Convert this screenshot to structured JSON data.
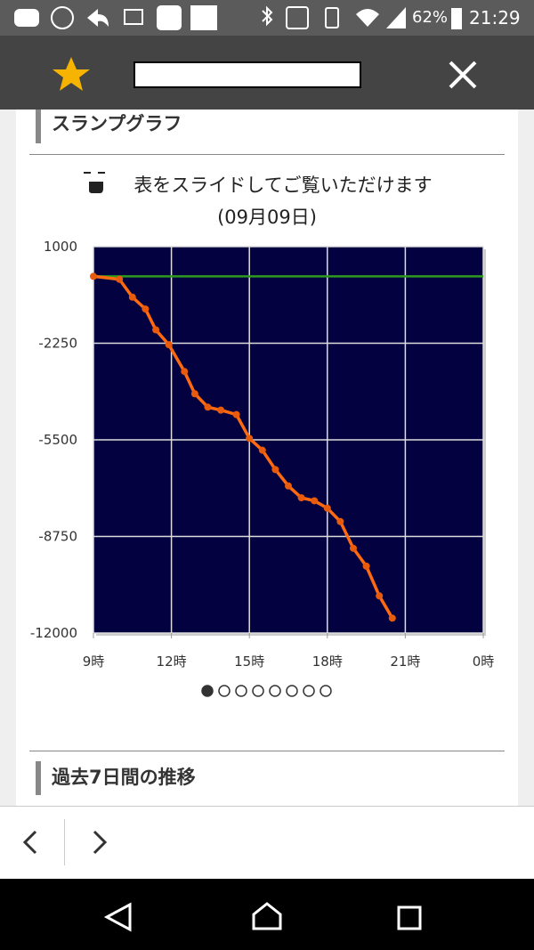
{
  "status_bar": {
    "battery": "62%",
    "time": "21:29"
  },
  "section_title": "スランプグラフ",
  "slide_notice": "表をスライドしてご覧いただけます",
  "date": "(09月09日)",
  "chart_data": {
    "type": "line",
    "xlim": [
      9,
      24
    ],
    "ylim": [
      -12000,
      1000
    ],
    "xticks": [
      {
        "value": 9,
        "label": "9時"
      },
      {
        "value": 12,
        "label": "12時"
      },
      {
        "value": 15,
        "label": "15時"
      },
      {
        "value": 18,
        "label": "18時"
      },
      {
        "value": 21,
        "label": "21時"
      },
      {
        "value": 24,
        "label": "0時"
      }
    ],
    "yticks": [
      1000,
      -2250,
      -5500,
      -8750,
      -12000
    ],
    "grid": true,
    "background": "#03013f",
    "series": [
      {
        "color": "#2e9a1e",
        "x": [
          9,
          24
        ],
        "values": [
          0,
          0
        ]
      },
      {
        "color": "#ff6a10",
        "x": [
          9,
          10,
          10.5,
          11,
          11.4,
          11.9,
          12.5,
          12.9,
          13.4,
          13.9,
          14.5,
          15,
          15.5,
          16,
          16.5,
          17,
          17.5,
          18,
          18.5,
          19,
          19.5,
          20,
          20.5
        ],
        "values": [
          0,
          -100,
          -700,
          -1100,
          -1800,
          -2300,
          -3200,
          -3950,
          -4400,
          -4500,
          -4650,
          -5450,
          -5850,
          -6500,
          -7050,
          -7450,
          -7550,
          -7800,
          -8250,
          -9150,
          -9750,
          -10750,
          -11500
        ]
      }
    ]
  },
  "next_section_title": "過去7日間の推移"
}
